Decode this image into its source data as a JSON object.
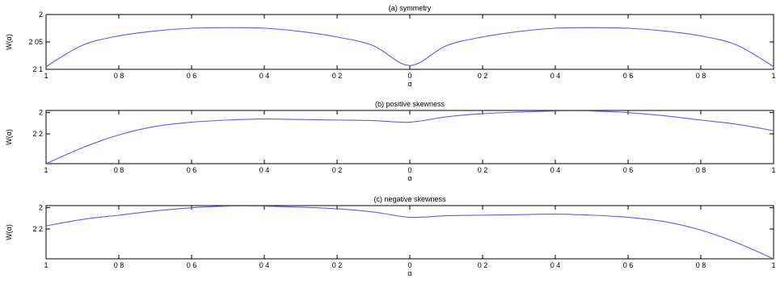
{
  "chart_data": [
    {
      "type": "line",
      "title": "(a) symmetry",
      "xlabel": "α",
      "ylabel": "W(α)",
      "xlim": [
        -1,
        1
      ],
      "ylim": [
        2.1,
        2.0
      ],
      "x_ticks": [
        -1,
        -0.8,
        -0.6,
        -0.4,
        -0.2,
        0,
        0.2,
        0.4,
        0.6,
        0.8,
        1
      ],
      "x_tick_labels": [
        "1",
        "0 8",
        "0 6",
        "0 4",
        "0 2",
        "0",
        "0 2",
        "0 4",
        "0 6",
        "0 8",
        "1"
      ],
      "y_ticks": [
        2.0,
        2.05,
        2.1
      ],
      "y_tick_labels": [
        "2",
        "2 05",
        "2 1"
      ],
      "grid": false,
      "series": [
        {
          "color": "#5a5aff",
          "x": [
            -1,
            -0.9,
            -0.8,
            -0.7,
            -0.6,
            -0.5,
            -0.4,
            -0.3,
            -0.2,
            -0.1,
            0,
            0.1,
            0.2,
            0.3,
            0.4,
            0.5,
            0.6,
            0.7,
            0.8,
            0.9,
            1
          ],
          "y": [
            2.095,
            2.056,
            2.039,
            2.03,
            2.025,
            2.024,
            2.025,
            2.031,
            2.041,
            2.057,
            2.093,
            2.057,
            2.041,
            2.031,
            2.025,
            2.024,
            2.025,
            2.03,
            2.039,
            2.056,
            2.095
          ]
        }
      ]
    },
    {
      "type": "line",
      "title": "(b) positive skewness",
      "xlabel": "α",
      "ylabel": "W(α)",
      "xlim": [
        -1,
        1
      ],
      "ylim": [
        2.48,
        1.98
      ],
      "x_ticks": [
        -1,
        -0.8,
        -0.6,
        -0.4,
        -0.2,
        0,
        0.2,
        0.4,
        0.6,
        0.8,
        1
      ],
      "x_tick_labels": [
        "1",
        "0 8",
        "0 6",
        "0 4",
        "0 2",
        "0",
        "0 2",
        "0 4",
        "0 6",
        "0 8",
        "1"
      ],
      "y_ticks": [
        2.0,
        2.2
      ],
      "y_tick_labels": [
        "2",
        "2 2"
      ],
      "grid": false,
      "series": [
        {
          "color": "#5a5aff",
          "x": [
            -1,
            -0.9,
            -0.8,
            -0.7,
            -0.6,
            -0.5,
            -0.4,
            -0.3,
            -0.2,
            -0.1,
            0,
            0.1,
            0.2,
            0.3,
            0.4,
            0.5,
            0.6,
            0.7,
            0.8,
            0.9,
            1
          ],
          "y": [
            2.48,
            2.33,
            2.21,
            2.13,
            2.09,
            2.07,
            2.06,
            2.065,
            2.07,
            2.075,
            2.09,
            2.04,
            2.01,
            1.995,
            1.985,
            1.985,
            2.0,
            2.03,
            2.07,
            2.11,
            2.17
          ]
        }
      ]
    },
    {
      "type": "line",
      "title": "(c) negative skewness",
      "xlabel": "α",
      "ylabel": "W(α)",
      "xlim": [
        -1,
        1
      ],
      "ylim": [
        2.48,
        1.98
      ],
      "x_ticks": [
        -1,
        -0.8,
        -0.6,
        -0.4,
        -0.2,
        0,
        0.2,
        0.4,
        0.6,
        0.8,
        1
      ],
      "x_tick_labels": [
        "1",
        "0 8",
        "0 6",
        "0 4",
        "0 2",
        "0",
        "0 2",
        "0 4",
        "0 6",
        "0 8",
        "1"
      ],
      "y_ticks": [
        2.0,
        2.2
      ],
      "y_tick_labels": [
        "2",
        "2 2"
      ],
      "grid": false,
      "series": [
        {
          "color": "#5a5aff",
          "x": [
            -1,
            -0.9,
            -0.8,
            -0.7,
            -0.6,
            -0.5,
            -0.4,
            -0.3,
            -0.2,
            -0.1,
            0,
            0.1,
            0.2,
            0.3,
            0.4,
            0.5,
            0.6,
            0.7,
            0.8,
            0.9,
            1
          ],
          "y": [
            2.17,
            2.11,
            2.07,
            2.03,
            2.0,
            1.985,
            1.985,
            1.995,
            2.01,
            2.04,
            2.09,
            2.075,
            2.07,
            2.065,
            2.06,
            2.07,
            2.09,
            2.13,
            2.21,
            2.33,
            2.48
          ]
        }
      ]
    }
  ]
}
